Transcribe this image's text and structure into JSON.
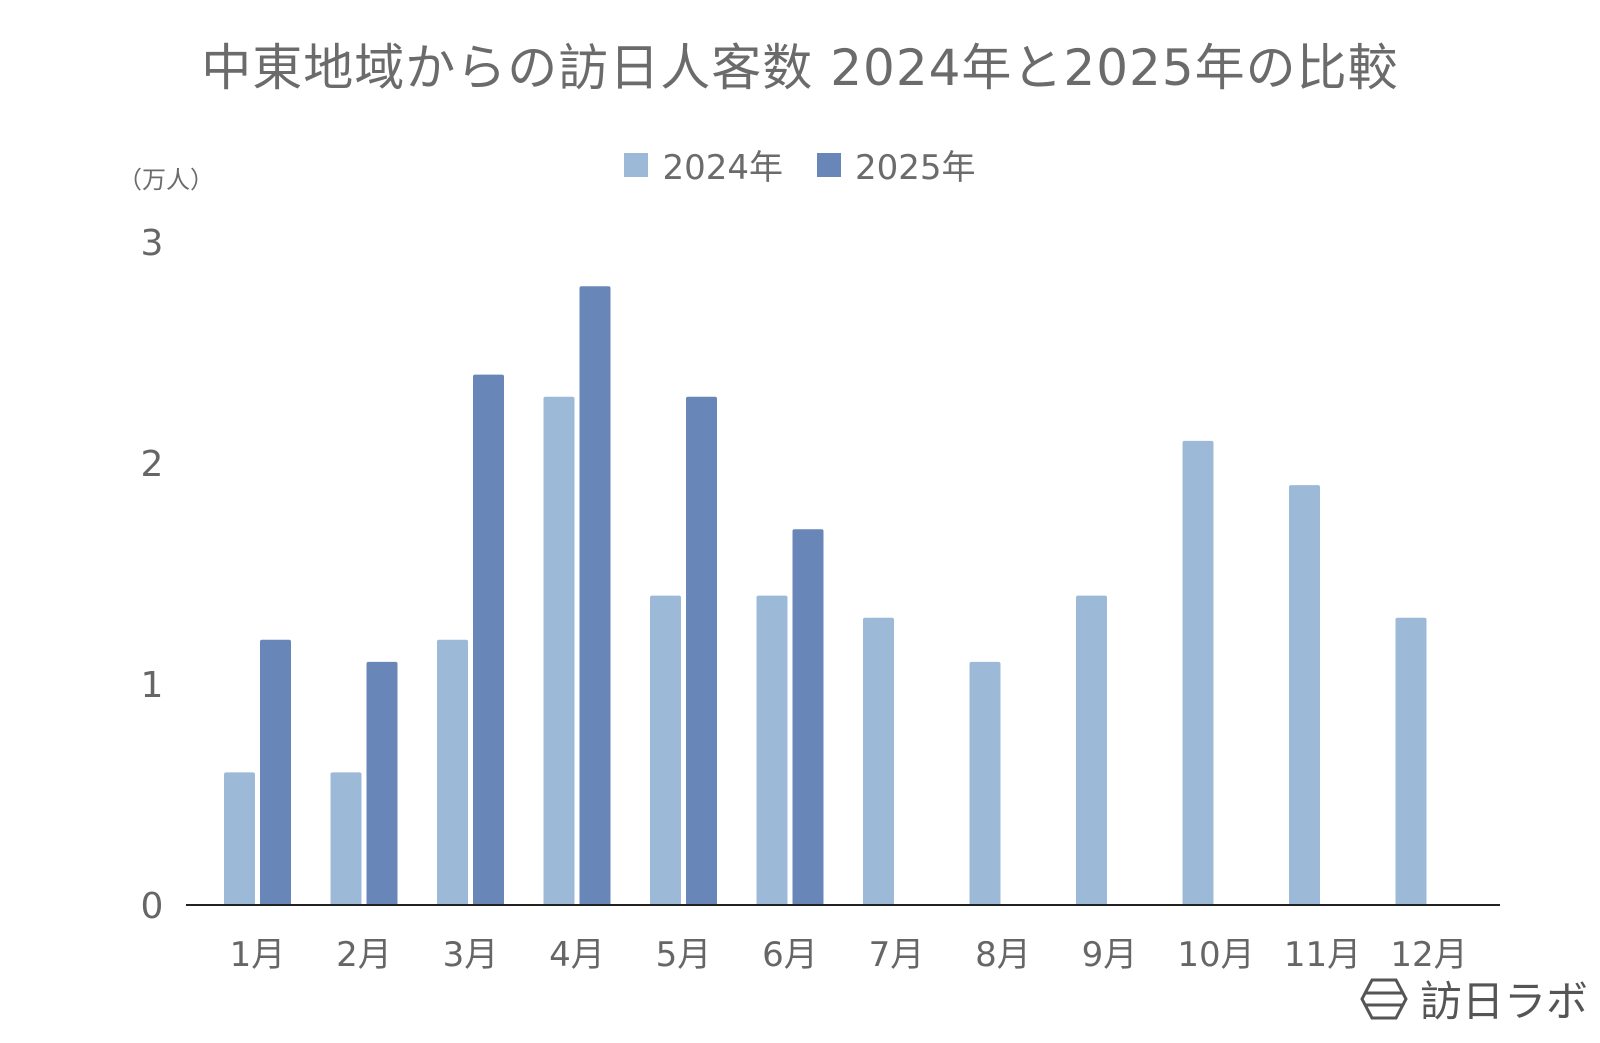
{
  "chart_data": {
    "type": "bar",
    "title": "中東地域からの訪日人客数 2024年と2025年の比較",
    "unit_label": "（万人）",
    "categories": [
      "1月",
      "2月",
      "3月",
      "4月",
      "5月",
      "6月",
      "7月",
      "8月",
      "9月",
      "10月",
      "11月",
      "12月"
    ],
    "series": [
      {
        "name": "2024年",
        "color": "#9db9d8",
        "values": [
          0.6,
          0.6,
          1.2,
          2.3,
          1.4,
          1.4,
          1.3,
          1.1,
          1.4,
          2.1,
          1.9,
          1.3
        ]
      },
      {
        "name": "2025年",
        "color": "#6886b7",
        "values": [
          1.2,
          1.1,
          2.4,
          2.8,
          2.3,
          1.7,
          null,
          null,
          null,
          null,
          null,
          null
        ]
      }
    ],
    "ylim": [
      0,
      3
    ],
    "yticks": [
      "0",
      "1",
      "2",
      "3"
    ],
    "grid": false,
    "legend_position": "top-center"
  },
  "watermark": {
    "text": "訪日ラボ",
    "icon": "hexagon-logo-icon"
  }
}
